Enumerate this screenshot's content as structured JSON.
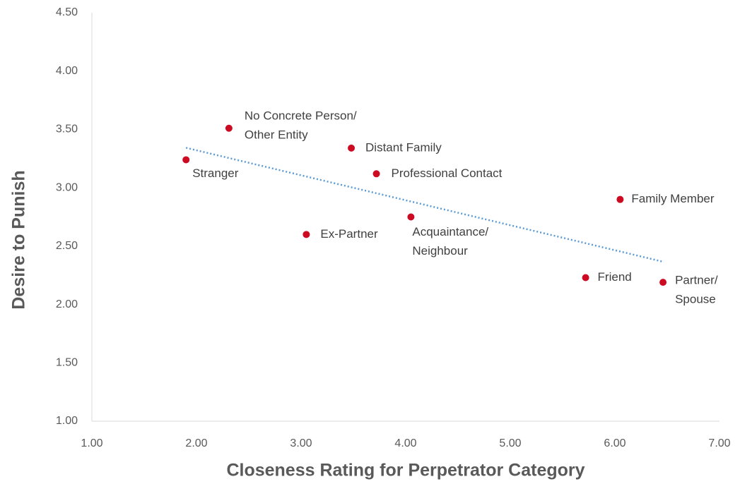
{
  "chart_data": {
    "type": "scatter",
    "x_label": "Closeness Rating for Perpetrator Category",
    "y_label": "Desire to Punish",
    "x": [
      1.9,
      2.31,
      3.48,
      3.72,
      6.05,
      4.05,
      3.05,
      5.72,
      6.46
    ],
    "values": [
      3.24,
      3.51,
      3.34,
      3.12,
      2.9,
      2.75,
      2.6,
      2.23,
      2.19
    ],
    "point_labels": [
      [
        "Stranger"
      ],
      [
        "No Concrete Person/",
        "Other Entity"
      ],
      [
        "Distant Family"
      ],
      [
        "Professional Contact"
      ],
      [
        "Family Member"
      ],
      [
        "Acquaintance/",
        "Neighbour"
      ],
      [
        "Ex-Partner"
      ],
      [
        "Friend"
      ],
      [
        "Partner/",
        "Spouse"
      ]
    ],
    "color": "#cc0a22",
    "trendline": true,
    "trendline_color": "#5b9bd5",
    "xlim": [
      1,
      7
    ],
    "ylim": [
      1,
      4.5
    ],
    "xticks": [
      {
        "value": 1,
        "label": "1.00"
      },
      {
        "value": 2,
        "label": "2.00"
      },
      {
        "value": 3,
        "label": "3.00"
      },
      {
        "value": 4,
        "label": "4.00"
      },
      {
        "value": 5,
        "label": "5.00"
      },
      {
        "value": 6,
        "label": "6.00"
      },
      {
        "value": 7,
        "label": "7.00"
      }
    ],
    "yticks": [
      {
        "value": 1,
        "label": "1.00"
      },
      {
        "value": 1.5,
        "label": "1.50"
      },
      {
        "value": 2,
        "label": "2.00"
      },
      {
        "value": 2.5,
        "label": "2.50"
      },
      {
        "value": 3,
        "label": "3.00"
      },
      {
        "value": 3.5,
        "label": "3.50"
      },
      {
        "value": 4,
        "label": "4.00"
      },
      {
        "value": 4.5,
        "label": "4.50"
      }
    ],
    "grid": false
  }
}
